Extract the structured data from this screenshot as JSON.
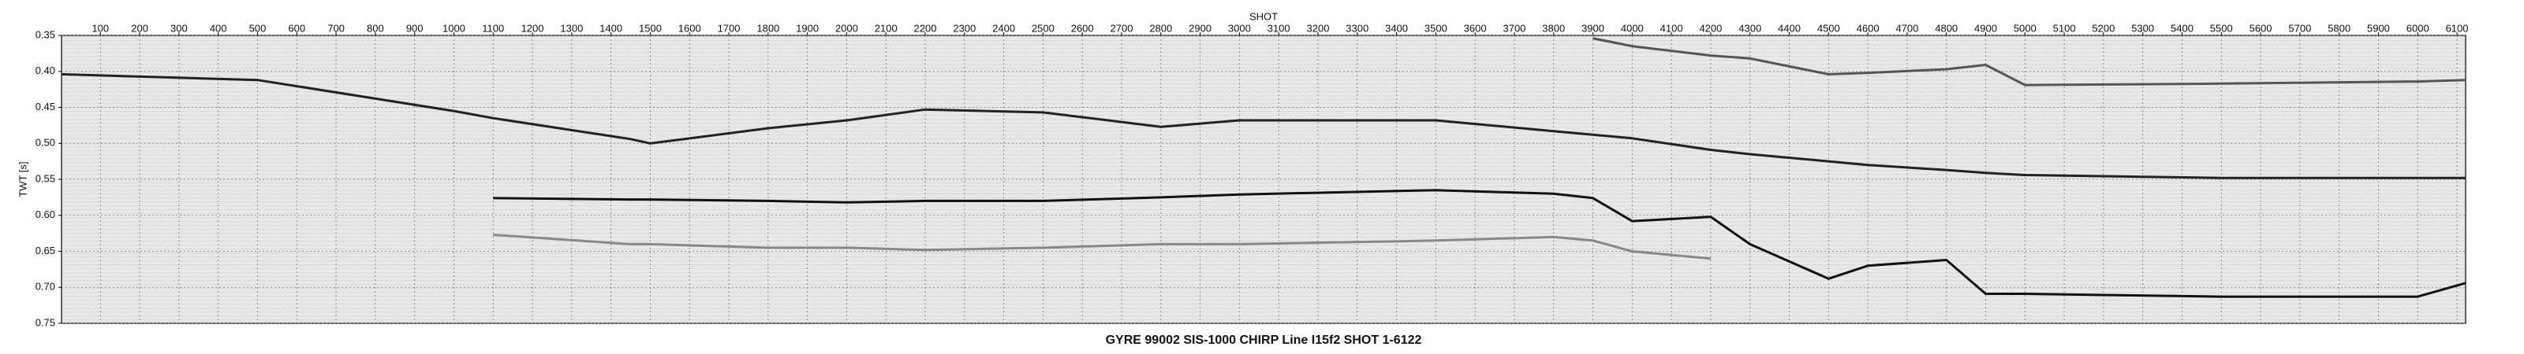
{
  "chart_data": {
    "type": "line",
    "title": "GYRE 99002 SIS-1000 CHIRP Line I15f2 SHOT 1-6122",
    "xlabel": "SHOT",
    "ylabel": "TWT [s]",
    "xlim": [
      1,
      6122
    ],
    "ylim": [
      0.35,
      0.75
    ],
    "y_inverted": true,
    "grid": true,
    "xticks": [
      100,
      200,
      300,
      400,
      500,
      600,
      700,
      800,
      900,
      1000,
      1100,
      1200,
      1300,
      1400,
      1500,
      1600,
      1700,
      1800,
      1900,
      2000,
      2100,
      2200,
      2300,
      2400,
      2500,
      2600,
      2700,
      2800,
      2900,
      3000,
      3100,
      3200,
      3300,
      3400,
      3500,
      3600,
      3700,
      3800,
      3900,
      4000,
      4100,
      4200,
      4300,
      4400,
      4500,
      4600,
      4700,
      4800,
      4900,
      5000,
      5100,
      5200,
      5300,
      5400,
      5500,
      5600,
      5700,
      5800,
      5900,
      6000,
      6100
    ],
    "yticks": [
      0.35,
      {
        "value": 0.4,
        "label": "0.40"
      },
      0.45,
      {
        "value": 0.5,
        "label": "0.50"
      },
      0.55,
      {
        "value": 0.6,
        "label": "0.60"
      },
      0.65,
      {
        "value": 0.7,
        "label": "0.70"
      },
      0.75
    ],
    "x": [
      1,
      500,
      1000,
      1100,
      1450,
      1500,
      1800,
      2000,
      2200,
      2500,
      2800,
      3000,
      3500,
      3800,
      3900,
      4000,
      4200,
      4300,
      4500,
      4600,
      4800,
      4900,
      5000,
      5500,
      6000,
      6122
    ],
    "series": [
      {
        "color": "#222222",
        "values": [
          0.404,
          0.412,
          0.455,
          0.465,
          0.494,
          0.5,
          0.479,
          0.468,
          0.453,
          0.457,
          0.477,
          0.468,
          0.468,
          0.483,
          0.488,
          0.493,
          0.509,
          0.515,
          0.525,
          0.53,
          0.537,
          0.541,
          0.544,
          0.548,
          0.548,
          0.548
        ]
      },
      {
        "color": "#111111",
        "values": [
          null,
          null,
          null,
          0.576,
          0.578,
          0.578,
          0.58,
          0.582,
          0.58,
          0.58,
          0.575,
          0.571,
          0.565,
          0.57,
          0.576,
          0.608,
          0.602,
          0.64,
          0.688,
          0.67,
          0.662,
          0.709,
          0.709,
          0.713,
          0.713,
          0.694
        ]
      },
      {
        "color": "#555555",
        "values": [
          null,
          null,
          null,
          null,
          null,
          null,
          null,
          null,
          null,
          null,
          null,
          null,
          null,
          null,
          0.354,
          0.365,
          0.378,
          0.382,
          0.404,
          0.402,
          0.397,
          0.391,
          0.419,
          0.417,
          0.414,
          0.412
        ]
      },
      {
        "color": "#888888",
        "values": [
          null,
          null,
          null,
          0.627,
          0.64,
          0.64,
          0.645,
          0.645,
          0.648,
          0.645,
          0.64,
          0.64,
          0.635,
          0.63,
          0.635,
          0.65,
          0.66,
          null,
          null,
          null,
          null,
          null,
          null,
          null,
          null,
          null
        ]
      }
    ]
  }
}
